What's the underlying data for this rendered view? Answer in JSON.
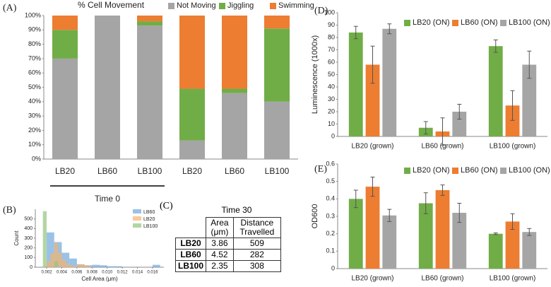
{
  "chart_data": [
    {
      "type": "bar",
      "stacked": true,
      "panel": "(A)",
      "title": "% Cell Movement",
      "group_label": "Time 0",
      "categories": [
        "LB20",
        "LB60",
        "LB100",
        "LB20",
        "LB60",
        "LB100"
      ],
      "series": [
        {
          "name": "Not Moving",
          "color": "#a5a5a5",
          "values": [
            70,
            100,
            93,
            13,
            46,
            40
          ]
        },
        {
          "name": "Jiggling",
          "color": "#70ad47",
          "values": [
            20,
            0,
            3,
            36,
            3,
            51
          ]
        },
        {
          "name": "Swimming",
          "color": "#ed7d31",
          "values": [
            10,
            0,
            4,
            51,
            51,
            9
          ]
        }
      ],
      "ylim": [
        0,
        100
      ],
      "yticks": [
        {
          "value": 0,
          "label": "0%"
        },
        {
          "value": 10,
          "label": "10%"
        },
        {
          "value": 20,
          "label": "20%"
        },
        {
          "value": 30,
          "label": "30%"
        },
        {
          "value": 40,
          "label": "40%"
        },
        {
          "value": 50,
          "label": "50%"
        },
        {
          "value": 60,
          "label": "60%"
        },
        {
          "value": 70,
          "label": "70%"
        },
        {
          "value": 80,
          "label": "80%"
        },
        {
          "value": 90,
          "label": "90%"
        },
        {
          "value": 100,
          "label": "100%"
        }
      ],
      "legend": "top-right"
    },
    {
      "type": "histogram",
      "panel": "(B)",
      "xlabel": "Cell Area (μm)",
      "ylabel": "Count",
      "series": [
        {
          "name": "LB60",
          "color": "#6fa8dc",
          "bins": [
            0.002,
            0.003,
            0.004,
            0.005,
            0.006,
            0.007,
            0.008,
            0.009,
            0.01,
            0.011,
            0.012,
            0.013,
            0.014,
            0.015,
            0.016,
            0.017
          ],
          "values": [
            360,
            260,
            150,
            90,
            30,
            20,
            25,
            20,
            10,
            10,
            0,
            0,
            0,
            0,
            25
          ]
        },
        {
          "name": "LB20",
          "color": "#f6b26b",
          "bins": [
            0.002,
            0.0025,
            0.003,
            0.0035,
            0.004,
            0.0045,
            0.005,
            0.0055,
            0.006,
            0.0065,
            0.007,
            0.0075,
            0.008
          ],
          "values": [
            60,
            140,
            250,
            150,
            80,
            40,
            20,
            10,
            30,
            30,
            20,
            10
          ]
        },
        {
          "name": "LB100",
          "color": "#93c47d",
          "bins": [
            0.0015,
            0.002,
            0.0025,
            0.003,
            0.0035
          ],
          "values": [
            580,
            0,
            0,
            60
          ]
        }
      ],
      "xlim": [
        0.0005,
        0.0175
      ],
      "xticks": [
        0.002,
        0.004,
        0.006,
        0.008,
        {
          "value": 0.01,
          "label": "0.010"
        },
        0.012,
        0.014,
        0.016
      ],
      "ylim": [
        0,
        600
      ],
      "yticks": [
        0,
        100,
        200,
        300,
        400,
        500
      ],
      "legend": "top-right"
    },
    {
      "type": "bar",
      "panel": "(D)",
      "ylabel": "Luminescence (1000x)",
      "categories": [
        "LB20 (grown)",
        "LB60 (grown)",
        "LB100 (grown)"
      ],
      "series": [
        {
          "name": "LB20 (ON)",
          "color": "#70ad47",
          "values": [
            84,
            7,
            73
          ],
          "errors": [
            5,
            5,
            5
          ]
        },
        {
          "name": "LB60 (ON)",
          "color": "#ed7d31",
          "values": [
            58,
            4,
            25
          ],
          "errors": [
            15,
            11,
            12
          ]
        },
        {
          "name": "LB100 (ON)",
          "color": "#a5a5a5",
          "values": [
            87,
            20,
            58
          ],
          "errors": [
            4,
            6,
            11
          ]
        }
      ],
      "ylim": [
        0,
        100
      ],
      "yticks": [
        0,
        10,
        20,
        30,
        40,
        50,
        60,
        70,
        80,
        90,
        100
      ],
      "legend": "top-right"
    },
    {
      "type": "bar",
      "panel": "(E)",
      "ylabel": "OD600",
      "categories": [
        "LB20 (grown)",
        "LB60 (grown)",
        "LB100 (grown)"
      ],
      "series": [
        {
          "name": "LB20 (ON)",
          "color": "#70ad47",
          "values": [
            0.4,
            0.375,
            0.2
          ],
          "errors": [
            0.05,
            0.06,
            0.005
          ]
        },
        {
          "name": "LB60 (ON)",
          "color": "#ed7d31",
          "values": [
            0.47,
            0.45,
            0.27
          ],
          "errors": [
            0.055,
            0.03,
            0.045
          ]
        },
        {
          "name": "LB100 (ON)",
          "color": "#a5a5a5",
          "values": [
            0.305,
            0.32,
            0.21
          ],
          "errors": [
            0.035,
            0.055,
            0.02
          ]
        }
      ],
      "ylim": [
        0,
        0.6
      ],
      "yticks": [
        0,
        0.1,
        0.2,
        0.3,
        0.4,
        0.5,
        0.6
      ],
      "legend": "top-right"
    }
  ],
  "table": {
    "panel": "(C)",
    "caption": "Time 30",
    "columns": [
      "Area (μm)",
      "Distance Travelled"
    ],
    "rows": [
      [
        "LB20",
        "3.86",
        "509"
      ],
      [
        "LB60",
        "4.52",
        "282"
      ],
      [
        "LB100",
        "2.35",
        "308"
      ]
    ]
  }
}
